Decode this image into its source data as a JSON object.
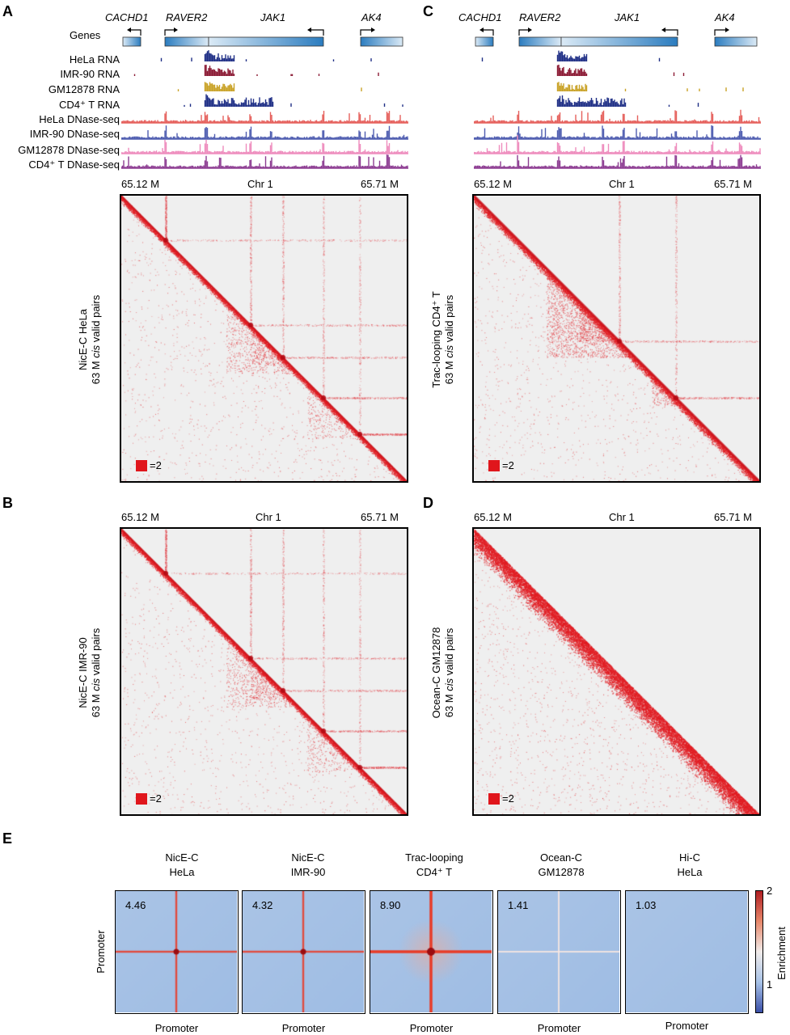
{
  "panels": {
    "A": "A",
    "B": "B",
    "C": "C",
    "D": "D",
    "E": "E"
  },
  "genes": {
    "header": "Genes",
    "cachd1": "CACHD1",
    "raver2": "RAVER2",
    "jak1": "JAK1",
    "ak4": "AK4"
  },
  "tracks": [
    {
      "label": "HeLa RNA",
      "color": "#1f2f86"
    },
    {
      "label": "IMR-90 RNA",
      "color": "#8b1a34"
    },
    {
      "label": "GM12878 RNA",
      "color": "#c9a227"
    },
    {
      "label": "CD4⁺ T RNA",
      "color": "#1f2f86"
    },
    {
      "label": "HeLa DNase-seq",
      "color": "#e5605c"
    },
    {
      "label": "IMR-90  DNase-seq",
      "color": "#4f5db0"
    },
    {
      "label": "GM12878 DNase-seq",
      "color": "#ee8cbd"
    },
    {
      "label": "CD4⁺ T DNase-seq",
      "color": "#8d3d92"
    }
  ],
  "axis": {
    "left": "65.12 M",
    "mid": "Chr 1",
    "right": "65.71 M"
  },
  "maps": {
    "A": {
      "line1": "NicE-C HeLa",
      "line2_pre": "63 M ",
      "line2_it": "cis",
      "line2_post": " valid pairs",
      "legend": "=2"
    },
    "B": {
      "line1": "NicE-C IMR-90",
      "line2_pre": "63 M ",
      "line2_it": "cis",
      "line2_post": " valid pairs",
      "legend": "=2"
    },
    "C": {
      "line0": "Trac-looping CD4⁺ T",
      "line1": "63 M ",
      "line1_it": "cis",
      "line1_post": " valid pairs",
      "legend": "=2"
    },
    "D": {
      "line1": "Ocean-C GM12878",
      "line2_pre": "63 M ",
      "line2_it": "cis",
      "line2_post": " valid pairs",
      "legend": "=2"
    }
  },
  "apa": {
    "y_label": "Promoter",
    "x_label": "Promoter",
    "colorbar": {
      "label": "Enrichment",
      "max": "2",
      "min": "1",
      "colors": [
        "#3a4fa8",
        "#a8c3e8",
        "#f1ecea",
        "#e7876a",
        "#b01e22"
      ]
    },
    "items": [
      {
        "t1": "NicE-C",
        "t2": "HeLa",
        "value": "4.46",
        "strength": 0.75
      },
      {
        "t1": "NicE-C",
        "t2": "IMR-90",
        "value": "4.32",
        "strength": 0.72
      },
      {
        "t1": "Trac-looping",
        "t2": "CD4⁺ T",
        "value": "8.90",
        "strength": 1.0
      },
      {
        "t1": "Ocean-C",
        "t2": "GM12878",
        "value": "1.41",
        "strength": 0.15
      },
      {
        "t1": "Hi-C",
        "t2": "HeLa",
        "value": "1.03",
        "strength": 0.0
      }
    ]
  }
}
